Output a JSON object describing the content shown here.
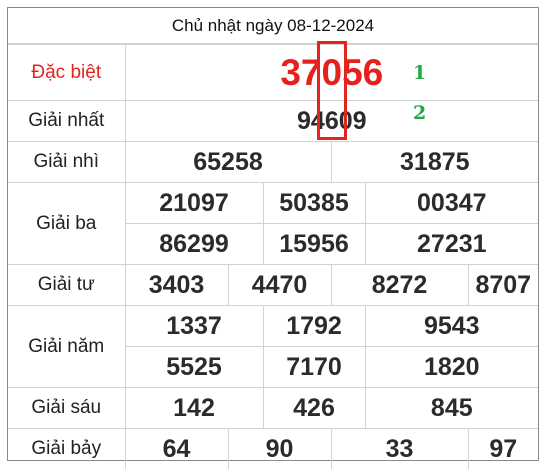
{
  "title": "Chủ nhật ngày 08-12-2024",
  "prizes": {
    "special": {
      "label": "Đặc biệt",
      "numbers": [
        "37056"
      ]
    },
    "first": {
      "label": "Giải nhất",
      "numbers": [
        "94609"
      ]
    },
    "second": {
      "label": "Giải nhì",
      "numbers": [
        "65258",
        "31875"
      ]
    },
    "third": {
      "label": "Giải ba",
      "numbers": [
        "21097",
        "50385",
        "00347",
        "86299",
        "15956",
        "27231"
      ]
    },
    "fourth": {
      "label": "Giải tư",
      "numbers": [
        "3403",
        "4470",
        "8272",
        "8707"
      ]
    },
    "fifth": {
      "label": "Giải năm",
      "numbers": [
        "1337",
        "1792",
        "9543",
        "5525",
        "7170",
        "1820"
      ]
    },
    "sixth": {
      "label": "Giải sáu",
      "numbers": [
        "142",
        "426",
        "845"
      ]
    },
    "seventh": {
      "label": "Giải bảy",
      "numbers": [
        "64",
        "90",
        "33",
        "97"
      ]
    }
  },
  "annotations": {
    "marker_1": "1",
    "marker_2": "2",
    "highlight_color": "#e5241f",
    "marker_color": "#22a84a"
  },
  "colors": {
    "special_text": "#e8201d",
    "number_text": "#2b2b2b",
    "grid_line": "#d2d2d2"
  }
}
